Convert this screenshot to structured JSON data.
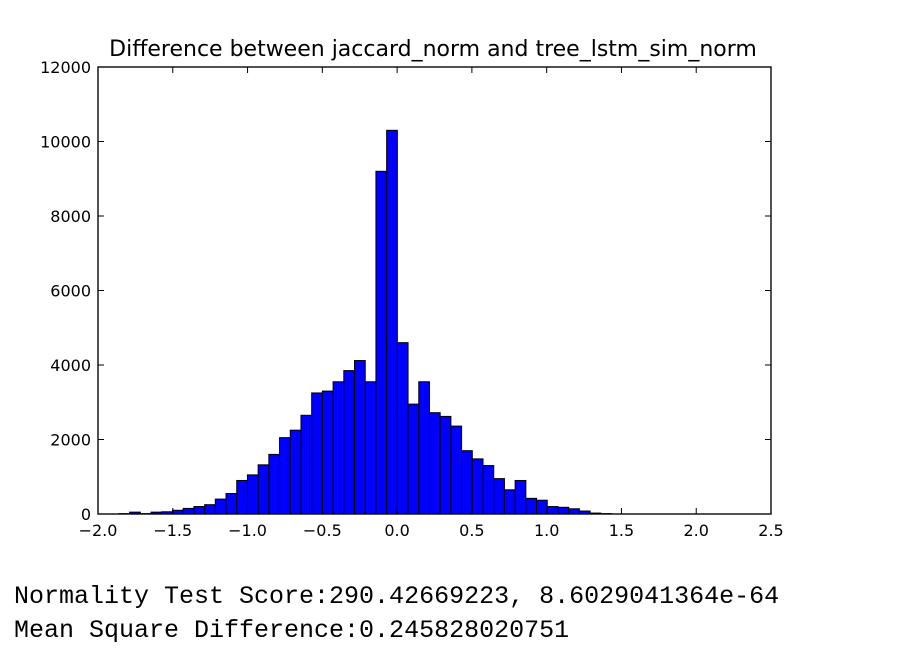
{
  "chart_data": {
    "type": "bar",
    "title": "Difference between jaccard_norm and tree_lstm_sim_norm",
    "xlabel": "",
    "ylabel": "",
    "xlim": [
      -2.0,
      2.5
    ],
    "ylim": [
      0,
      12000
    ],
    "x_ticks": [
      -2.0,
      -1.5,
      -1.0,
      -0.5,
      0.0,
      0.5,
      1.0,
      1.5,
      2.0,
      2.5
    ],
    "x_tick_labels": [
      "−2.0",
      "−1.5",
      "−1.0",
      "−0.5",
      "0.0",
      "0.5",
      "1.0",
      "1.5",
      "2.0",
      "2.5"
    ],
    "y_ticks": [
      0,
      2000,
      4000,
      6000,
      8000,
      10000,
      12000
    ],
    "y_tick_labels": [
      "0",
      "2000",
      "4000",
      "6000",
      "8000",
      "10000",
      "12000"
    ],
    "grid": false,
    "bar_color": "#0000ff",
    "edge_color": "#000000",
    "bin_start": -1.86,
    "bin_width": 0.0716,
    "values": [
      10,
      50,
      10,
      50,
      60,
      100,
      150,
      200,
      250,
      400,
      550,
      900,
      1050,
      1320,
      1600,
      2050,
      2250,
      2650,
      3250,
      3300,
      3550,
      3850,
      4120,
      3550,
      9200,
      10300,
      4600,
      2950,
      3550,
      2720,
      2620,
      2360,
      1700,
      1480,
      1300,
      950,
      650,
      900,
      420,
      370,
      200,
      180,
      140,
      80,
      25,
      10
    ]
  },
  "output": {
    "normality_line": "Normality Test Score:290.42669223, 8.6029041364e-64",
    "msd_line": "Mean Square Difference:0.245828020751"
  }
}
